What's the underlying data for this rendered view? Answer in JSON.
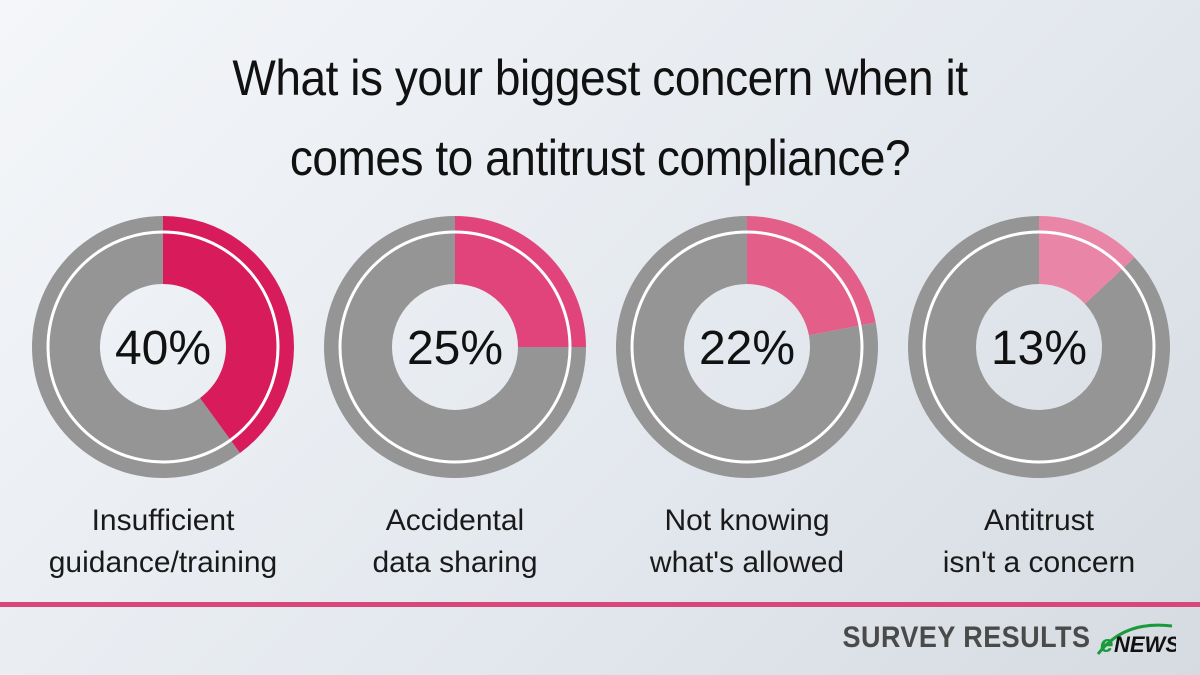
{
  "chart_data": {
    "type": "pie",
    "title": "What is your biggest concern when it comes to antitrust compliance?",
    "title_lines": [
      "What is your biggest concern when it",
      "comes to antitrust compliance?"
    ],
    "series": [
      {
        "label": "Insufficient guidance/training",
        "label_lines": [
          "Insufficient",
          "guidance/training"
        ],
        "value": 40,
        "display": "40%",
        "color": "#d81b5a"
      },
      {
        "label": "Accidental data sharing",
        "label_lines": [
          "Accidental",
          "data sharing"
        ],
        "value": 25,
        "display": "25%",
        "color": "#e0447a"
      },
      {
        "label": "Not knowing what's allowed",
        "label_lines": [
          "Not knowing",
          "what's allowed"
        ],
        "value": 22,
        "display": "22%",
        "color": "#e35f8a"
      },
      {
        "label": "Antitrust isn't a concern",
        "label_lines": [
          "Antitrust",
          "isn't a concern"
        ],
        "value": 13,
        "display": "13%",
        "color": "#e986a8"
      }
    ],
    "remainder_color": "#959595"
  },
  "footer": {
    "text": "SURVEY RESULTS",
    "logo": "eNEWS"
  },
  "colors": {
    "accent": "#d9467a",
    "logo_green": "#1a9a3a"
  }
}
